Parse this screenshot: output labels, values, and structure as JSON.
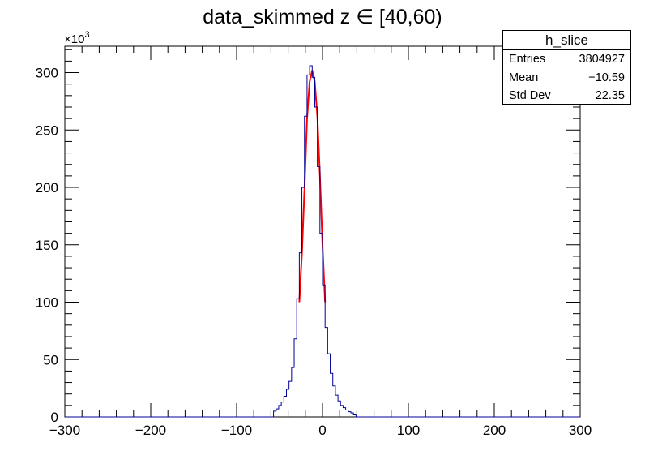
{
  "chart_data": {
    "type": "histogram",
    "title": "data_skimmed z  ∈ [40,60)",
    "xlabel": "",
    "ylabel": "",
    "xlim": [
      -300,
      300
    ],
    "ylim": [
      0,
      323000
    ],
    "y_multiplier_label": "×10",
    "y_multiplier_exponent": "3",
    "x_ticks": [
      -300,
      -200,
      -100,
      0,
      100,
      200,
      300
    ],
    "x_tick_labels": [
      "−300",
      "−200",
      "−100",
      "0",
      "100",
      "200",
      "300"
    ],
    "y_ticks": [
      0,
      50000,
      100000,
      150000,
      200000,
      250000,
      300000
    ],
    "y_tick_labels": [
      "0",
      "50",
      "100",
      "150",
      "200",
      "250",
      "300"
    ],
    "bin_width": 3,
    "bin_centers": [
      -55.5,
      -52.5,
      -49.5,
      -46.5,
      -43.5,
      -40.5,
      -37.5,
      -34.5,
      -31.5,
      -28.5,
      -25.5,
      -22.5,
      -19.5,
      -16.5,
      -13.5,
      -10.5,
      -7.5,
      -4.5,
      -1.5,
      1.5,
      4.5,
      7.5,
      10.5,
      13.5,
      16.5,
      19.5,
      22.5,
      25.5,
      28.5,
      31.5,
      34.5,
      37.5
    ],
    "counts": [
      5000,
      7000,
      10000,
      13000,
      18000,
      24000,
      31000,
      43000,
      68000,
      103000,
      143000,
      200000,
      262000,
      298000,
      306000,
      296000,
      270000,
      218000,
      160000,
      115000,
      78000,
      55000,
      38000,
      27000,
      19000,
      14000,
      10000,
      8000,
      6000,
      4500,
      3500,
      2500
    ],
    "series": [
      {
        "name": "h_slice",
        "color": "#000099"
      },
      {
        "name": "",
        "color": "#ff0000"
      }
    ],
    "fit_x": [
      -27,
      -24,
      -21,
      -18,
      -15,
      -12,
      -9,
      -6,
      -3,
      0,
      3
    ],
    "fit_y": [
      100000,
      142000,
      198000,
      260000,
      292000,
      302000,
      292000,
      262000,
      210000,
      150000,
      100000
    ],
    "stats": {
      "name": "h_slice",
      "rows": [
        {
          "label": "Entries",
          "value": "3804927"
        },
        {
          "label": "Mean",
          "value": "−10.59"
        },
        {
          "label": "Std Dev",
          "value": "22.35"
        }
      ]
    }
  }
}
